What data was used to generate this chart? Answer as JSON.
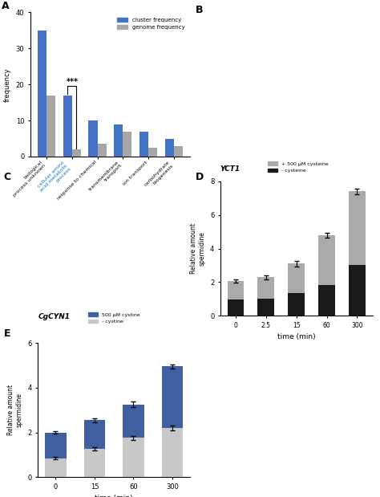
{
  "panel_A": {
    "categories": [
      "biological\nprocess unknown",
      "cellular amino\nacid metabolic\nprocess",
      "response to chemical",
      "transmembrane\ntransport",
      "ion transport",
      "carbohydrate\nbiogenesis"
    ],
    "cluster_freq": [
      35,
      17,
      10,
      9,
      7,
      5
    ],
    "genome_freq": [
      17,
      2,
      3.5,
      7,
      2.5,
      3
    ],
    "cluster_color": "#4472C4",
    "genome_color": "#A6A6A6",
    "ylim": [
      0,
      40
    ],
    "yticks": [
      0,
      10,
      20,
      30,
      40
    ],
    "ylabel": "frequency",
    "highlight_color": "#0070C0",
    "sig_label": "***"
  },
  "panel_D": {
    "title": "YCT1",
    "categories": [
      "0",
      "2.5",
      "15",
      "60",
      "300"
    ],
    "plus_total": [
      2.05,
      2.3,
      3.1,
      4.8,
      7.4
    ],
    "minus_total": [
      0.95,
      1.0,
      1.35,
      1.8,
      3.0
    ],
    "plus_color": "#AAAAAA",
    "minus_color": "#1a1a1a",
    "ylim": [
      0,
      8
    ],
    "yticks": [
      0,
      2,
      4,
      6,
      8
    ],
    "ylabel": "Relative amount\nspermidine",
    "xlabel": "time (min)",
    "legend_plus": "+ 500 μM cysteine",
    "legend_minus": "- cysteine",
    "plus_err": [
      0.1,
      0.12,
      0.18,
      0.15,
      0.15
    ],
    "minus_err": [
      0.05,
      0.05,
      0.08,
      0.12,
      0.15
    ]
  },
  "panel_E": {
    "title": "CgCYN1",
    "categories": [
      "0",
      "15",
      "60",
      "300"
    ],
    "plus_total": [
      2.0,
      2.55,
      3.25,
      4.95
    ],
    "minus_total": [
      0.85,
      1.25,
      1.75,
      2.2
    ],
    "plus_color": "#3F5FA0",
    "minus_color": "#C8C8C8",
    "ylim": [
      0,
      6
    ],
    "yticks": [
      0,
      2,
      4,
      6
    ],
    "ylabel": "Relative amount\nspermidine",
    "xlabel": "time (min)",
    "legend_plus": "500 μM cystine",
    "legend_minus": "- cystine",
    "plus_err": [
      0.06,
      0.09,
      0.12,
      0.1
    ],
    "minus_err": [
      0.04,
      0.07,
      0.1,
      0.1
    ]
  }
}
